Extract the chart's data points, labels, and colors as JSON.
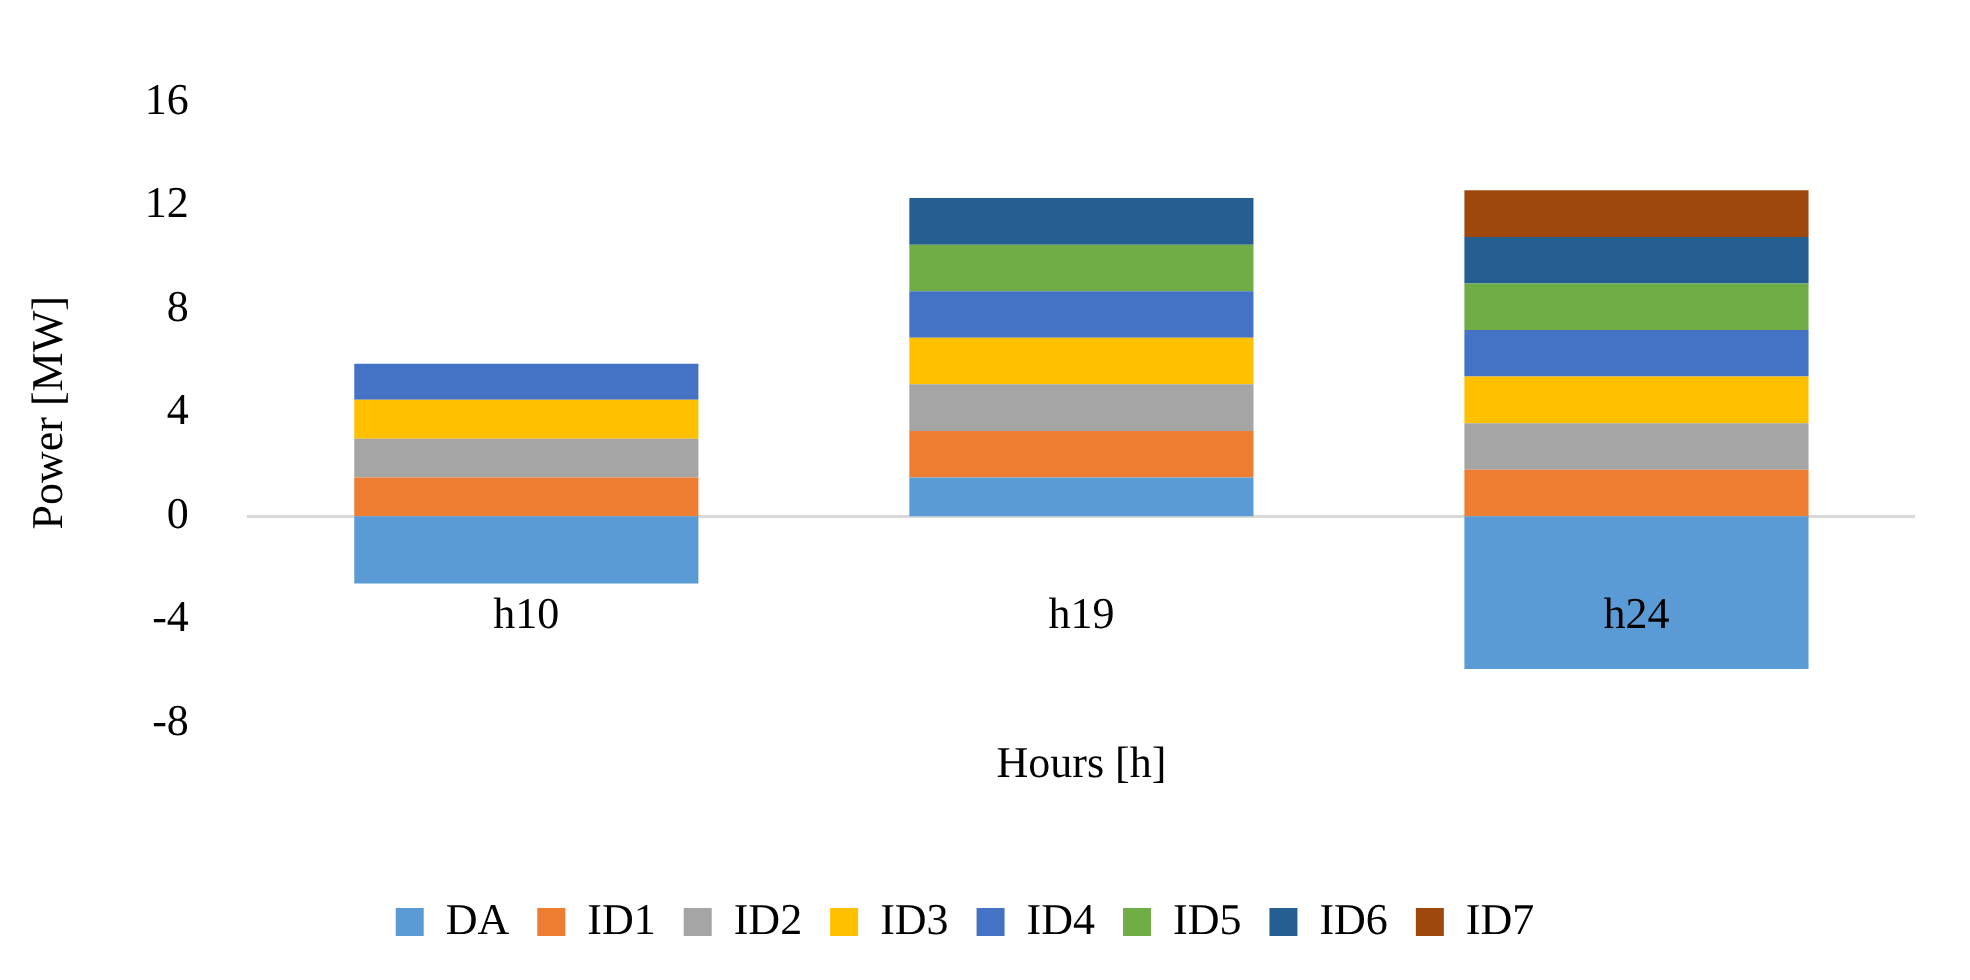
{
  "chart_data": {
    "type": "bar",
    "stacked": true,
    "xlabel": "Hours [h]",
    "ylabel": "Power [MW]",
    "categories": [
      "h10",
      "h19",
      "h24"
    ],
    "series": [
      {
        "name": "DA",
        "color": "#5b9bd5",
        "values": [
          -2.6,
          1.5,
          -5.9
        ]
      },
      {
        "name": "ID1",
        "color": "#ed7d31",
        "values": [
          1.5,
          1.8,
          1.8
        ]
      },
      {
        "name": "ID2",
        "color": "#a5a5a5",
        "values": [
          1.5,
          1.8,
          1.8
        ]
      },
      {
        "name": "ID3",
        "color": "#ffc000",
        "values": [
          1.5,
          1.8,
          1.8
        ]
      },
      {
        "name": "ID4",
        "color": "#4472c4",
        "values": [
          1.4,
          1.8,
          1.8
        ]
      },
      {
        "name": "ID5",
        "color": "#70ad47",
        "values": [
          null,
          1.8,
          1.8
        ]
      },
      {
        "name": "ID6",
        "color": "#255e91",
        "values": [
          null,
          1.8,
          1.8
        ]
      },
      {
        "name": "ID7",
        "color": "#9e480e",
        "values": [
          null,
          null,
          1.8
        ]
      }
    ],
    "ylim": [
      -8,
      16
    ],
    "yticks": [
      -8,
      -4,
      0,
      4,
      8,
      12,
      16
    ],
    "grid": false,
    "legend": "bottom"
  }
}
